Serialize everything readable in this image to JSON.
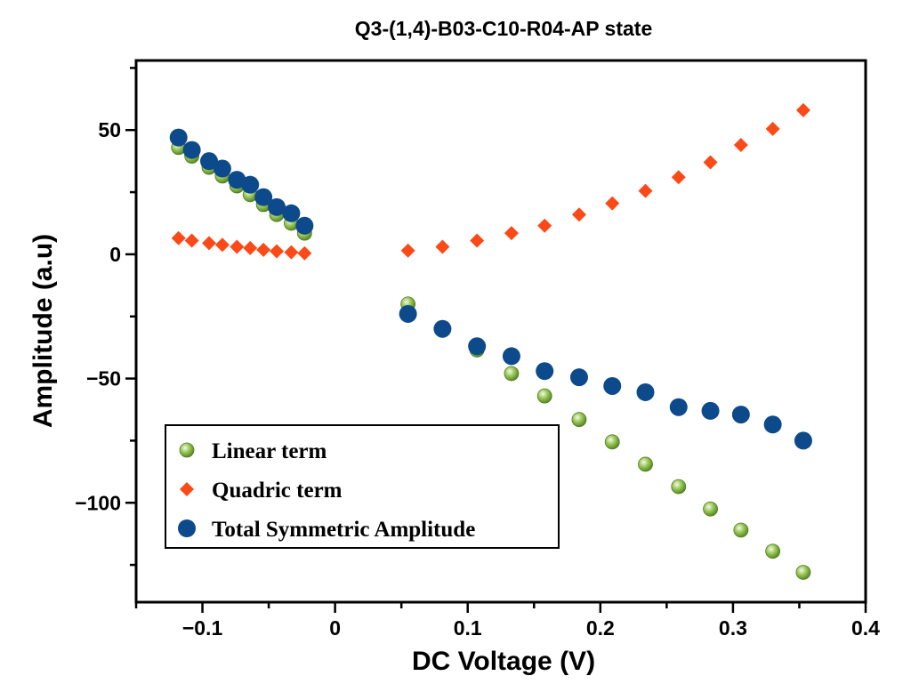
{
  "chart_data": {
    "type": "scatter",
    "title": "Q3-(1,4)-B03-C10-R04-AP state",
    "xlabel": "DC Voltage (V)",
    "ylabel": "Amplitude (a.u)",
    "xlim": [
      -0.15,
      0.4
    ],
    "ylim": [
      -140,
      78
    ],
    "xticks": [
      {
        "value": -0.1,
        "label": "−0.1"
      },
      {
        "value": 0,
        "label": "0"
      },
      {
        "value": 0.1,
        "label": "0.1"
      },
      {
        "value": 0.2,
        "label": "0.2"
      },
      {
        "value": 0.3,
        "label": "0.3"
      },
      {
        "value": 0.4,
        "label": "0.4"
      }
    ],
    "yticks": [
      {
        "value": 50,
        "label": "50"
      },
      {
        "value": 0,
        "label": "0"
      },
      {
        "value": -50,
        "label": "−50"
      },
      {
        "value": -100,
        "label": "−100"
      }
    ],
    "legend_position": "bottom-left",
    "grid": false,
    "series": [
      {
        "name": "Linear term",
        "marker": "sphere",
        "color": "#7aab3a",
        "x": [
          -0.118,
          -0.108,
          -0.095,
          -0.085,
          -0.074,
          -0.064,
          -0.054,
          -0.044,
          -0.033,
          -0.023,
          0.055,
          0.081,
          0.107,
          0.133,
          0.158,
          0.184,
          0.209,
          0.234,
          0.259,
          0.283,
          0.306,
          0.33,
          0.353
        ],
        "y": [
          43,
          39.5,
          35,
          31.5,
          27.5,
          24,
          20,
          16,
          12.5,
          8.5,
          -20,
          -29.5,
          -38.5,
          -48,
          -57,
          -66.5,
          -75.5,
          -84.5,
          -93.5,
          -102.5,
          -111,
          -119.5,
          -128
        ]
      },
      {
        "name": "Quadric term",
        "marker": "diamond",
        "color": "#fb4a18",
        "x": [
          -0.118,
          -0.108,
          -0.095,
          -0.085,
          -0.074,
          -0.064,
          -0.054,
          -0.044,
          -0.033,
          -0.023,
          0.055,
          0.081,
          0.107,
          0.133,
          0.158,
          0.184,
          0.209,
          0.234,
          0.259,
          0.283,
          0.306,
          0.33,
          0.353
        ],
        "y": [
          6.5,
          5.5,
          4.5,
          3.8,
          3,
          2.5,
          1.8,
          1.2,
          0.8,
          0.4,
          1.5,
          3,
          5.5,
          8.5,
          11.5,
          16,
          20.5,
          25.5,
          31,
          37,
          44,
          50.5,
          58
        ]
      },
      {
        "name": "Total Symmetric Amplitude",
        "marker": "circle",
        "color": "#0d4a8c",
        "x": [
          -0.118,
          -0.108,
          -0.095,
          -0.085,
          -0.074,
          -0.064,
          -0.054,
          -0.044,
          -0.033,
          -0.023,
          0.055,
          0.081,
          0.107,
          0.133,
          0.158,
          0.184,
          0.209,
          0.234,
          0.259,
          0.283,
          0.306,
          0.33,
          0.353
        ],
        "y": [
          47,
          42,
          37.5,
          34.5,
          30,
          28,
          23,
          19,
          16.5,
          11.5,
          -24,
          -30,
          -37,
          -41,
          -47,
          -49.5,
          -53,
          -55.5,
          -61.5,
          -63,
          -64.5,
          -68.5,
          -75
        ]
      }
    ]
  }
}
